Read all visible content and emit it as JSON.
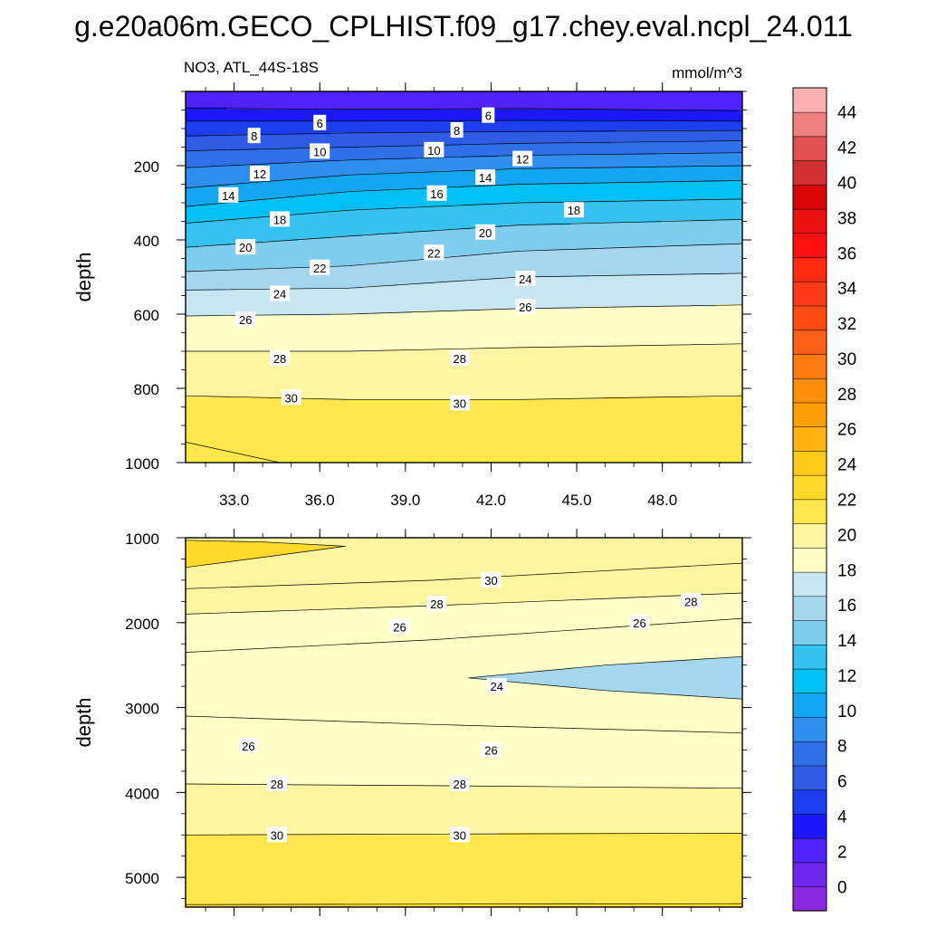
{
  "figure": {
    "title": "g.e20a06m.GECO_CPLHIST.f09_g17.chey.eval.ncpl_24.011",
    "left_label": "NO3, ATL_44S-18S",
    "right_label": "mmol/m^3"
  },
  "chart_data": [
    {
      "type": "heatmap",
      "name": "upper",
      "xlabel": "",
      "ylabel": "depth",
      "xlim": [
        31.3,
        50.8
      ],
      "ylim": [
        1000,
        0
      ],
      "xticks": [
        33.0,
        36.0,
        39.0,
        42.0,
        45.0,
        48.0
      ],
      "xticklabels": [
        "33.0",
        "36.0",
        "39.0",
        "42.0",
        "45.0",
        "48.0"
      ],
      "yticks": [
        200,
        400,
        600,
        800,
        1000
      ],
      "yticklabels": [
        "200",
        "400",
        "600",
        "800",
        "1000"
      ],
      "contours": [
        {
          "level": 4,
          "points": [
            [
              31.3,
              45
            ],
            [
              37,
              48
            ],
            [
              43,
              46
            ],
            [
              50.8,
              52
            ]
          ]
        },
        {
          "level": 6,
          "points": [
            [
              31.3,
              80
            ],
            [
              37,
              80
            ],
            [
              43,
              78
            ],
            [
              50.8,
              80
            ]
          ]
        },
        {
          "level": 8,
          "points": [
            [
              31.3,
              120
            ],
            [
              37,
              112
            ],
            [
              43,
              108
            ],
            [
              50.8,
              105
            ]
          ]
        },
        {
          "level": 10,
          "points": [
            [
              31.3,
              160
            ],
            [
              37,
              150
            ],
            [
              43,
              140
            ],
            [
              50.8,
              133
            ]
          ]
        },
        {
          "level": 12,
          "points": [
            [
              31.3,
              205
            ],
            [
              37,
              185
            ],
            [
              43,
              172
            ],
            [
              50.8,
              165
            ]
          ]
        },
        {
          "level": 14,
          "points": [
            [
              31.3,
              260
            ],
            [
              37,
              225
            ],
            [
              43,
              208
            ],
            [
              50.8,
              200
            ]
          ]
        },
        {
          "level": 16,
          "points": [
            [
              31.3,
              310
            ],
            [
              37,
              270
            ],
            [
              43,
              250
            ],
            [
              50.8,
              240
            ]
          ]
        },
        {
          "level": 18,
          "points": [
            [
              31.3,
              355
            ],
            [
              37,
              320
            ],
            [
              43,
              300
            ],
            [
              50.8,
              290
            ]
          ]
        },
        {
          "level": 20,
          "points": [
            [
              31.3,
              420
            ],
            [
              37,
              390
            ],
            [
              43,
              360
            ],
            [
              50.8,
              345
            ]
          ]
        },
        {
          "level": 22,
          "points": [
            [
              31.3,
              485
            ],
            [
              37,
              470
            ],
            [
              43,
              430
            ],
            [
              50.8,
              410
            ]
          ]
        },
        {
          "level": 24,
          "points": [
            [
              31.3,
              535
            ],
            [
              37,
              530
            ],
            [
              43,
              500
            ],
            [
              50.8,
              490
            ]
          ]
        },
        {
          "level": 26,
          "points": [
            [
              31.3,
              605
            ],
            [
              37,
              600
            ],
            [
              43,
              585
            ],
            [
              50.8,
              575
            ]
          ]
        },
        {
          "level": 28,
          "points": [
            [
              31.3,
              700
            ],
            [
              37,
              700
            ],
            [
              43,
              690
            ],
            [
              50.8,
              680
            ]
          ]
        },
        {
          "level": 30,
          "points": [
            [
              31.3,
              820
            ],
            [
              37,
              830
            ],
            [
              43,
              830
            ],
            [
              50.8,
              820
            ]
          ]
        },
        {
          "level": 32,
          "points": [
            [
              31.3,
              945
            ],
            [
              34.6,
              1000
            ]
          ]
        }
      ],
      "labels": [
        {
          "level": 6,
          "x": 36.0,
          "y": 85
        },
        {
          "level": 6,
          "x": 41.9,
          "y": 65
        },
        {
          "level": 8,
          "x": 33.7,
          "y": 120
        },
        {
          "level": 8,
          "x": 40.8,
          "y": 105
        },
        {
          "level": 10,
          "x": 36.0,
          "y": 162
        },
        {
          "level": 10,
          "x": 40.0,
          "y": 158
        },
        {
          "level": 12,
          "x": 33.9,
          "y": 222
        },
        {
          "level": 12,
          "x": 43.1,
          "y": 182
        },
        {
          "level": 14,
          "x": 32.8,
          "y": 280
        },
        {
          "level": 14,
          "x": 41.8,
          "y": 232
        },
        {
          "level": 16,
          "x": 40.1,
          "y": 275
        },
        {
          "level": 18,
          "x": 34.6,
          "y": 345
        },
        {
          "level": 18,
          "x": 44.9,
          "y": 320
        },
        {
          "level": 20,
          "x": 33.4,
          "y": 420
        },
        {
          "level": 20,
          "x": 41.8,
          "y": 380
        },
        {
          "level": 22,
          "x": 36.0,
          "y": 475
        },
        {
          "level": 22,
          "x": 40.0,
          "y": 435
        },
        {
          "level": 24,
          "x": 34.6,
          "y": 545
        },
        {
          "level": 24,
          "x": 43.2,
          "y": 505
        },
        {
          "level": 26,
          "x": 33.4,
          "y": 615
        },
        {
          "level": 26,
          "x": 43.2,
          "y": 580
        },
        {
          "level": 28,
          "x": 34.6,
          "y": 720
        },
        {
          "level": 28,
          "x": 40.9,
          "y": 720
        },
        {
          "level": 30,
          "x": 35.0,
          "y": 825
        },
        {
          "level": 30,
          "x": 40.9,
          "y": 840
        }
      ]
    },
    {
      "type": "heatmap",
      "name": "lower",
      "xlabel": "",
      "ylabel": "depth",
      "xlim": [
        31.3,
        50.8
      ],
      "ylim": [
        5350,
        1000
      ],
      "xticks": [
        33.0,
        36.0,
        39.0,
        42.0,
        45.0,
        48.0
      ],
      "xticklabels": [],
      "yticks": [
        1000,
        2000,
        3000,
        4000,
        5000
      ],
      "yticklabels": [
        "1000",
        "2000",
        "3000",
        "4000",
        "5000"
      ],
      "contours": [
        {
          "level": 32,
          "points": [
            [
              31.3,
              1350
            ],
            [
              34,
              1230
            ],
            [
              36.9,
              1100
            ],
            [
              34,
              1050
            ],
            [
              31.3,
              1030
            ]
          ]
        },
        {
          "level": 30,
          "points": [
            [
              31.3,
              1600
            ],
            [
              40,
              1500
            ],
            [
              50.8,
              1300
            ]
          ]
        },
        {
          "level": 28,
          "points": [
            [
              31.3,
              1900
            ],
            [
              40,
              1800
            ],
            [
              50.8,
              1650
            ]
          ]
        },
        {
          "level": 26,
          "points": [
            [
              31.3,
              2350
            ],
            [
              40,
              2200
            ],
            [
              50.8,
              1950
            ]
          ]
        },
        {
          "level": 24,
          "points": [
            [
              41.2,
              2650
            ],
            [
              46,
              2500
            ],
            [
              50.8,
              2400
            ]
          ]
        },
        {
          "level": 24,
          "points": [
            [
              41.2,
              2650
            ],
            [
              46,
              2800
            ],
            [
              50.8,
              2900
            ]
          ]
        },
        {
          "level": 26,
          "points": [
            [
              31.3,
              3100
            ],
            [
              40,
              3200
            ],
            [
              50.8,
              3300
            ]
          ]
        },
        {
          "level": 28,
          "points": [
            [
              31.3,
              3900
            ],
            [
              40,
              3920
            ],
            [
              50.8,
              3950
            ]
          ]
        },
        {
          "level": 30,
          "points": [
            [
              31.3,
              4500
            ],
            [
              40,
              4490
            ],
            [
              50.8,
              4480
            ]
          ]
        },
        {
          "level": 32,
          "points": [
            [
              31.3,
              5320
            ],
            [
              50.8,
              5310
            ]
          ]
        }
      ],
      "labels": [
        {
          "level": 30,
          "x": 42.0,
          "y": 1500
        },
        {
          "level": 28,
          "x": 40.1,
          "y": 1780
        },
        {
          "level": 28,
          "x": 49.0,
          "y": 1750
        },
        {
          "level": 26,
          "x": 38.8,
          "y": 2050
        },
        {
          "level": 26,
          "x": 47.2,
          "y": 2000
        },
        {
          "level": 24,
          "x": 42.2,
          "y": 2750
        },
        {
          "level": 26,
          "x": 33.5,
          "y": 3450
        },
        {
          "level": 26,
          "x": 42.0,
          "y": 3500
        },
        {
          "level": 28,
          "x": 34.5,
          "y": 3900
        },
        {
          "level": 28,
          "x": 40.9,
          "y": 3900
        },
        {
          "level": 30,
          "x": 34.5,
          "y": 4500
        },
        {
          "level": 30,
          "x": 40.9,
          "y": 4500
        }
      ]
    }
  ],
  "colorbar": {
    "levels": [
      0,
      2,
      4,
      6,
      8,
      10,
      12,
      14,
      16,
      18,
      20,
      22,
      24,
      26,
      28,
      30,
      32,
      34,
      36,
      38,
      40,
      42,
      44
    ],
    "ticklabels": [
      "0",
      "2",
      "4",
      "6",
      "8",
      "10",
      "12",
      "14",
      "16",
      "18",
      "20",
      "22",
      "24",
      "26",
      "28",
      "30",
      "32",
      "34",
      "36",
      "38",
      "40",
      "42",
      "44"
    ],
    "colors": [
      "#8a28e0",
      "#6f27ee",
      "#4f22f7",
      "#1a18f8",
      "#1a3ef0",
      "#2f5ce6",
      "#2f70e8",
      "#2f8ff0",
      "#14a6f2",
      "#00c0f5",
      "#35c2f0",
      "#7fcdee",
      "#a4d6ee",
      "#c6e6f2",
      "#ffffc6",
      "#fff5a0",
      "#ffe74d",
      "#ffda28",
      "#ffca18",
      "#ffb210",
      "#ff9f0a",
      "#ff8d0a",
      "#ff7a10",
      "#ff6018",
      "#ff4b10",
      "#ff3a18",
      "#ff2a10",
      "#ff1010",
      "#e81010",
      "#d80808",
      "#d03030",
      "#e05050",
      "#f08080",
      "#f8b0b0"
    ]
  }
}
